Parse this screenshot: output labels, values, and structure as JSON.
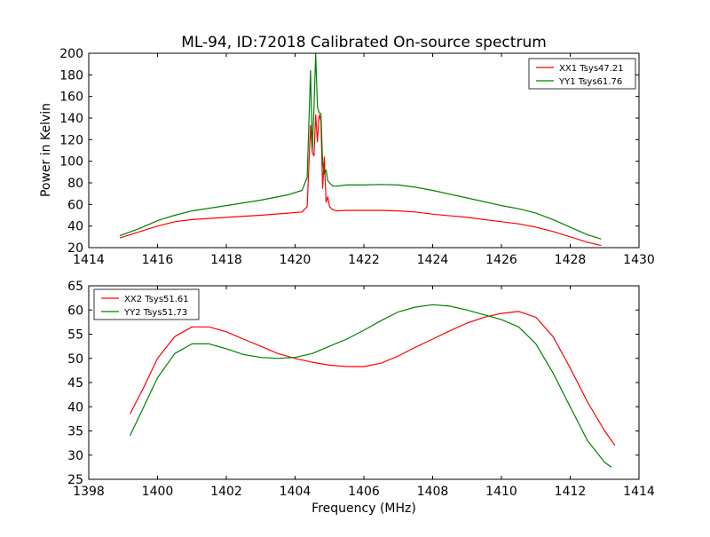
{
  "chart_data": [
    {
      "type": "line",
      "title": "ML-94, ID:72018 Calibrated On-source spectrum",
      "xlabel": "",
      "ylabel": "Power in Kelvin",
      "xlim": [
        1414,
        1430
      ],
      "ylim": [
        20,
        200
      ],
      "xticks": [
        "1414",
        "1416",
        "1418",
        "1420",
        "1422",
        "1424",
        "1426",
        "1428",
        "1430"
      ],
      "yticks": [
        "20",
        "40",
        "60",
        "80",
        "100",
        "120",
        "140",
        "160",
        "180",
        "200"
      ],
      "grid": false,
      "legend_position": "top-right",
      "series": [
        {
          "name": "XX1 Tsys47.21",
          "color": "#ff0000",
          "x": [
            1414.9,
            1415.5,
            1416.0,
            1416.5,
            1417.0,
            1418.0,
            1419.0,
            1419.8,
            1420.2,
            1420.35,
            1420.45,
            1420.5,
            1420.55,
            1420.6,
            1420.65,
            1420.7,
            1420.75,
            1420.8,
            1420.85,
            1420.9,
            1420.95,
            1421.0,
            1421.1,
            1421.2,
            1421.5,
            1422.0,
            1422.5,
            1423.0,
            1423.5,
            1424.0,
            1425.0,
            1426.0,
            1426.5,
            1427.0,
            1427.5,
            1428.0,
            1428.5,
            1428.9
          ],
          "y": [
            29,
            35,
            40,
            44,
            46,
            48,
            50,
            52,
            53,
            58,
            133,
            108,
            105,
            143,
            118,
            143,
            138,
            75,
            104,
            62,
            67,
            58,
            55,
            54,
            54.5,
            54.5,
            54.5,
            54,
            53,
            51,
            48,
            44,
            42,
            39,
            35,
            30,
            25,
            22
          ]
        },
        {
          "name": "YY1 Tsys61.76",
          "color": "#008000",
          "x": [
            1414.9,
            1415.5,
            1416.0,
            1416.5,
            1417.0,
            1418.0,
            1419.0,
            1419.8,
            1420.2,
            1420.35,
            1420.45,
            1420.5,
            1420.55,
            1420.6,
            1420.65,
            1420.7,
            1420.75,
            1420.8,
            1420.85,
            1420.9,
            1420.95,
            1421.0,
            1421.1,
            1421.2,
            1421.5,
            1422.0,
            1422.5,
            1423.0,
            1423.5,
            1424.0,
            1425.0,
            1426.0,
            1426.5,
            1427.0,
            1427.5,
            1428.0,
            1428.5,
            1428.9
          ],
          "y": [
            31,
            38,
            45,
            50,
            54,
            59,
            64,
            69,
            73,
            85,
            184,
            110,
            150,
            200,
            150,
            145,
            144,
            100,
            88,
            92,
            82,
            80,
            77,
            77,
            78,
            78,
            78.5,
            78,
            76,
            73,
            66,
            59,
            56,
            52,
            46,
            39,
            32,
            28
          ]
        }
      ]
    },
    {
      "type": "line",
      "title": "",
      "xlabel": "Frequency (MHz)",
      "ylabel": "",
      "xlim": [
        1398,
        1414
      ],
      "ylim": [
        25,
        65
      ],
      "xticks": [
        "1398",
        "1400",
        "1402",
        "1404",
        "1406",
        "1408",
        "1410",
        "1412",
        "1414"
      ],
      "yticks": [
        "25",
        "30",
        "35",
        "40",
        "45",
        "50",
        "55",
        "60",
        "65"
      ],
      "grid": false,
      "legend_position": "top-left",
      "series": [
        {
          "name": "XX2 Tsys51.61",
          "color": "#ff0000",
          "x": [
            1399.2,
            1399.6,
            1400.0,
            1400.5,
            1401.0,
            1401.5,
            1402.0,
            1402.5,
            1403.0,
            1403.5,
            1404.0,
            1404.5,
            1405.0,
            1405.5,
            1406.0,
            1406.5,
            1407.0,
            1407.5,
            1408.0,
            1408.5,
            1409.0,
            1409.5,
            1410.0,
            1410.5,
            1411.0,
            1411.5,
            1412.0,
            1412.5,
            1413.0,
            1413.3
          ],
          "y": [
            38.5,
            44,
            50,
            54.5,
            56.5,
            56.5,
            55.5,
            54,
            52.5,
            51,
            50,
            49.2,
            48.6,
            48.3,
            48.3,
            49,
            50.5,
            52.3,
            54,
            55.7,
            57.3,
            58.5,
            59.3,
            59.7,
            58.5,
            54.5,
            48,
            41,
            35,
            32
          ]
        },
        {
          "name": "YY2 Tsys51.73",
          "color": "#008000",
          "x": [
            1399.2,
            1399.6,
            1400.0,
            1400.5,
            1401.0,
            1401.5,
            1402.0,
            1402.5,
            1403.0,
            1403.5,
            1404.0,
            1404.5,
            1405.0,
            1405.5,
            1406.0,
            1406.5,
            1407.0,
            1407.5,
            1408.0,
            1408.5,
            1409.0,
            1409.5,
            1410.0,
            1410.5,
            1411.0,
            1411.5,
            1412.0,
            1412.5,
            1413.0,
            1413.2
          ],
          "y": [
            34,
            40,
            46,
            51,
            53,
            53,
            52,
            50.8,
            50.2,
            50,
            50.2,
            51,
            52.5,
            54,
            55.8,
            57.8,
            59.6,
            60.6,
            61.1,
            60.8,
            60,
            59,
            58,
            56.5,
            53,
            47,
            40,
            33,
            28.5,
            27.5
          ]
        }
      ]
    }
  ]
}
